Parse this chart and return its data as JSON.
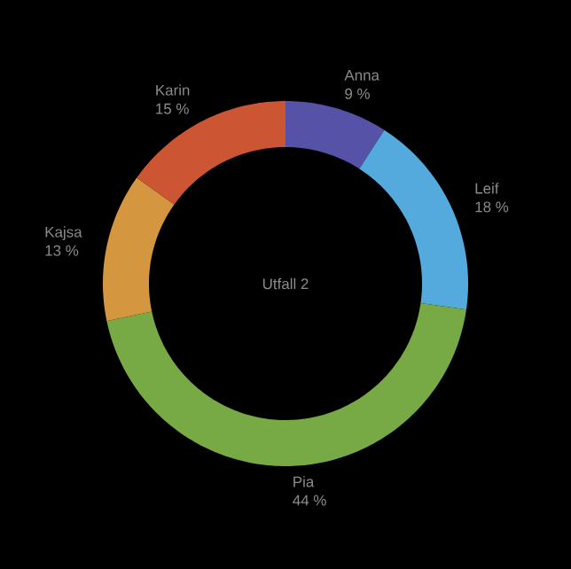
{
  "chart_data": {
    "type": "donut",
    "title": "Utfall 2",
    "categories": [
      "Anna",
      "Leif",
      "Pia",
      "Kajsa",
      "Karin"
    ],
    "values": [
      9,
      18,
      44,
      13,
      15
    ],
    "value_labels": [
      "9 %",
      "18 %",
      "44 %",
      "13 %",
      "15 %"
    ],
    "colors": [
      "#5552a8",
      "#55aadd",
      "#77aa44",
      "#d4973f",
      "#cc5533"
    ]
  }
}
